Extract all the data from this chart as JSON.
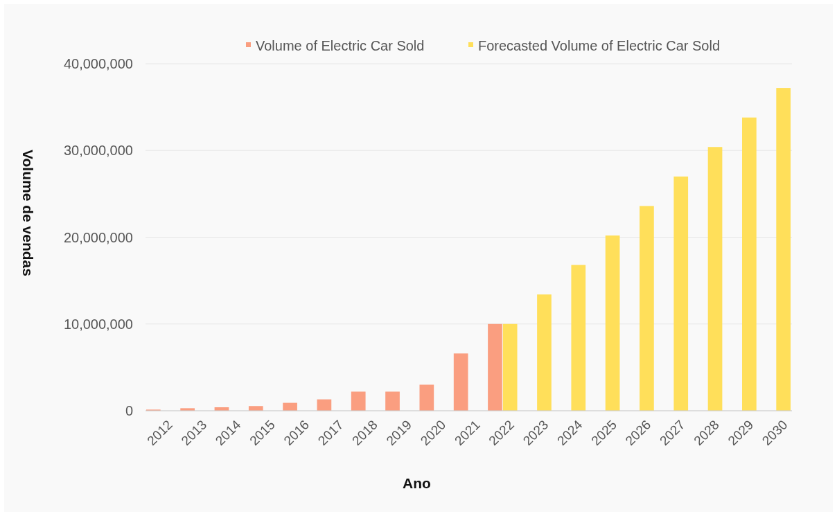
{
  "chart_data": {
    "type": "bar",
    "xlabel": "Ano",
    "ylabel": "Volume de vendas",
    "categories": [
      "2012",
      "2013",
      "2014",
      "2015",
      "2016",
      "2017",
      "2018",
      "2019",
      "2020",
      "2021",
      "2022",
      "2023",
      "2024",
      "2025",
      "2026",
      "2027",
      "2028",
      "2029",
      "2030"
    ],
    "series": [
      {
        "name": "Volume of Electric Car Sold",
        "color": "#fa9e80",
        "values": [
          130000,
          290000,
          400000,
          540000,
          910000,
          1310000,
          2200000,
          2200000,
          3000000,
          6600000,
          10000000,
          null,
          null,
          null,
          null,
          null,
          null,
          null,
          null
        ]
      },
      {
        "name": "Forecasted Volume of Electric Car Sold",
        "color": "#ffdf5a",
        "values": [
          null,
          null,
          null,
          null,
          null,
          null,
          null,
          null,
          null,
          null,
          10000000,
          13400000,
          16800000,
          20200000,
          23600000,
          27000000,
          30400000,
          33800000,
          37200000
        ]
      }
    ],
    "ylim": [
      0,
      40000000
    ],
    "yticks": [
      {
        "value": 0,
        "label": "0"
      },
      {
        "value": 10000000,
        "label": "10,000,000"
      },
      {
        "value": 20000000,
        "label": "20,000,000"
      },
      {
        "value": 30000000,
        "label": "30,000,000"
      },
      {
        "value": 40000000,
        "label": "40,000,000"
      }
    ],
    "grid": "y",
    "legend": "top"
  }
}
